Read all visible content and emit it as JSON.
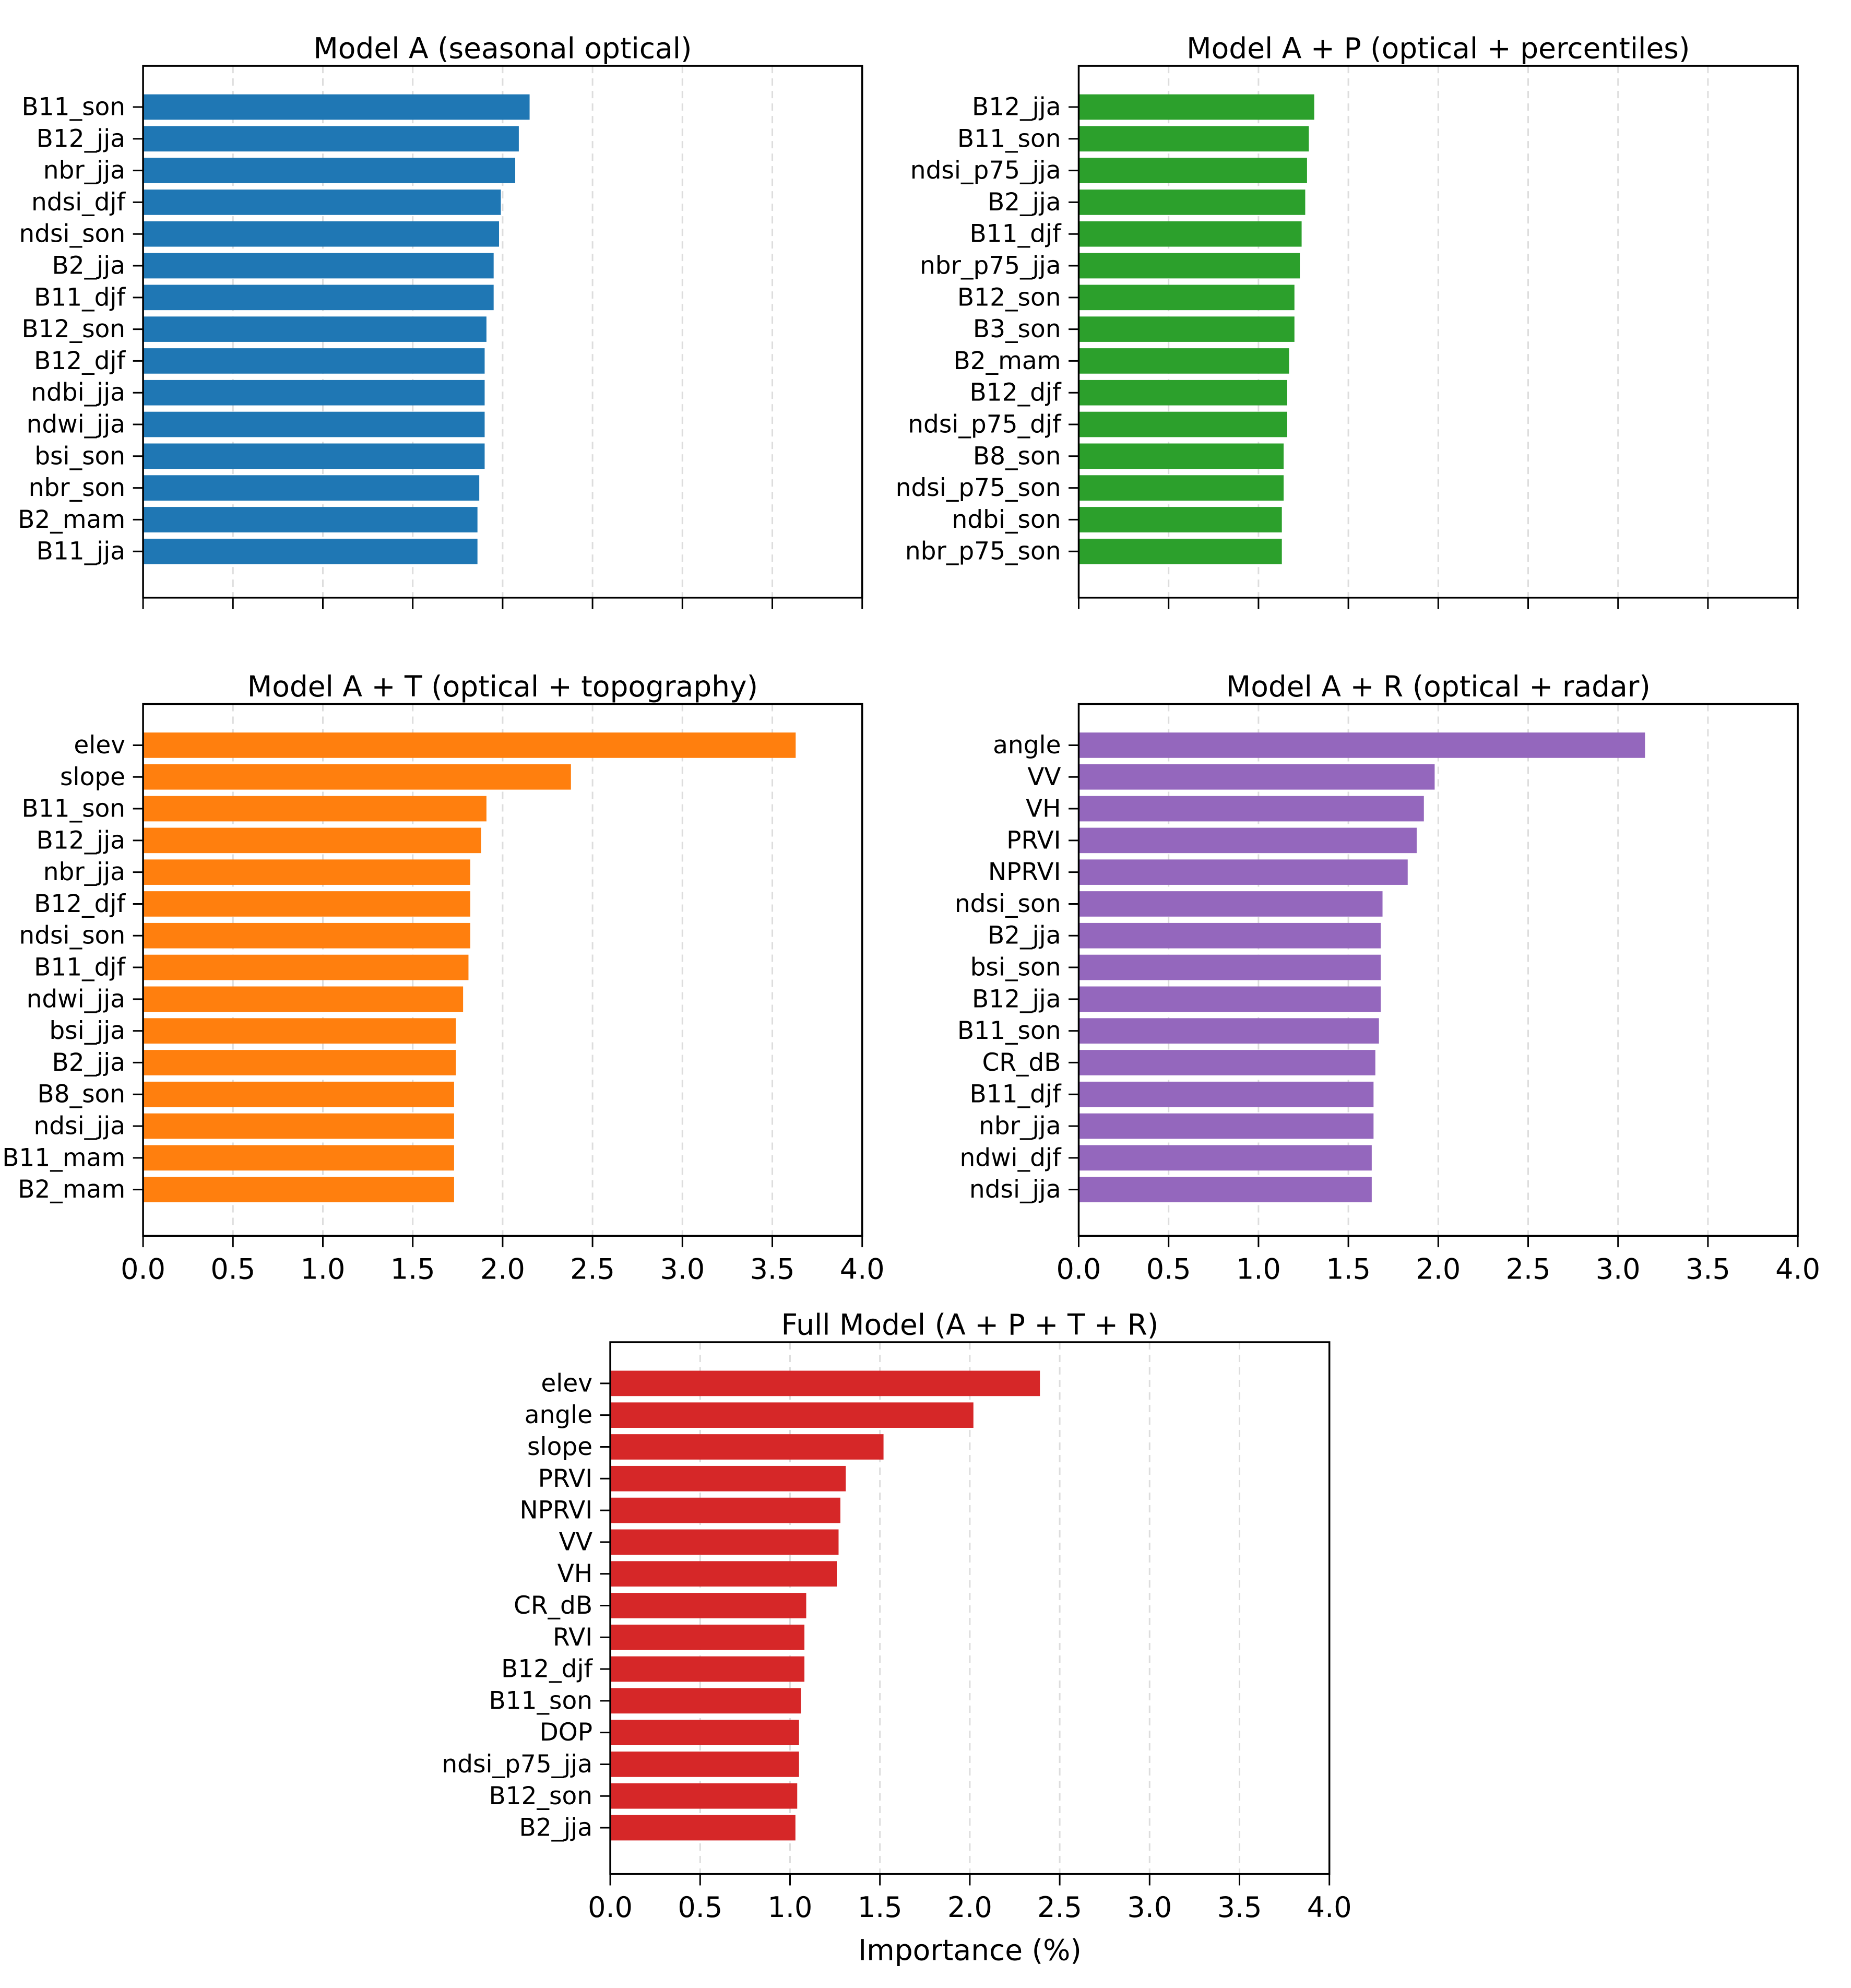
{
  "chart_data": [
    {
      "type": "bar",
      "orientation": "horizontal",
      "title": "Model A (seasonal optical)",
      "color": "#1f77b4",
      "xlim": [
        0,
        4
      ],
      "x_ticks": [
        "0.0",
        "0.5",
        "1.0",
        "1.5",
        "2.0",
        "2.5",
        "3.0",
        "3.5",
        "4.0"
      ],
      "show_tick_labels": false,
      "xlabel": "",
      "grid": "x-dashed",
      "categories": [
        "B11_son",
        "B12_jja",
        "nbr_jja",
        "ndsi_djf",
        "ndsi_son",
        "B2_jja",
        "B11_djf",
        "B12_son",
        "B12_djf",
        "ndbi_jja",
        "ndwi_jja",
        "bsi_son",
        "nbr_son",
        "B2_mam",
        "B11_jja"
      ],
      "values": [
        2.15,
        2.09,
        2.07,
        1.99,
        1.98,
        1.95,
        1.95,
        1.91,
        1.9,
        1.9,
        1.9,
        1.9,
        1.87,
        1.86,
        1.86
      ]
    },
    {
      "type": "bar",
      "orientation": "horizontal",
      "title": "Model A + P (optical + percentiles)",
      "color": "#2ca02c",
      "xlim": [
        0,
        4
      ],
      "x_ticks": [
        "0.0",
        "0.5",
        "1.0",
        "1.5",
        "2.0",
        "2.5",
        "3.0",
        "3.5",
        "4.0"
      ],
      "show_tick_labels": false,
      "xlabel": "",
      "grid": "x-dashed",
      "categories": [
        "B12_jja",
        "B11_son",
        "ndsi_p75_jja",
        "B2_jja",
        "B11_djf",
        "nbr_p75_jja",
        "B12_son",
        "B3_son",
        "B2_mam",
        "B12_djf",
        "ndsi_p75_djf",
        "B8_son",
        "ndsi_p75_son",
        "ndbi_son",
        "nbr_p75_son"
      ],
      "values": [
        1.31,
        1.28,
        1.27,
        1.26,
        1.24,
        1.23,
        1.2,
        1.2,
        1.17,
        1.16,
        1.16,
        1.14,
        1.14,
        1.13,
        1.13
      ]
    },
    {
      "type": "bar",
      "orientation": "horizontal",
      "title": "Model A + T (optical + topography)",
      "color": "#ff7f0e",
      "xlim": [
        0,
        4
      ],
      "x_ticks": [
        "0.0",
        "0.5",
        "1.0",
        "1.5",
        "2.0",
        "2.5",
        "3.0",
        "3.5",
        "4.0"
      ],
      "show_tick_labels": true,
      "xlabel": "",
      "grid": "x-dashed",
      "categories": [
        "elev",
        "slope",
        "B11_son",
        "B12_jja",
        "nbr_jja",
        "B12_djf",
        "ndsi_son",
        "B11_djf",
        "ndwi_jja",
        "bsi_jja",
        "B2_jja",
        "B8_son",
        "ndsi_jja",
        "B11_mam",
        "B2_mam"
      ],
      "values": [
        3.63,
        2.38,
        1.91,
        1.88,
        1.82,
        1.82,
        1.82,
        1.81,
        1.78,
        1.74,
        1.74,
        1.73,
        1.73,
        1.73,
        1.73
      ]
    },
    {
      "type": "bar",
      "orientation": "horizontal",
      "title": "Model A + R (optical + radar)",
      "color": "#9467bd",
      "xlim": [
        0,
        4
      ],
      "x_ticks": [
        "0.0",
        "0.5",
        "1.0",
        "1.5",
        "2.0",
        "2.5",
        "3.0",
        "3.5",
        "4.0"
      ],
      "show_tick_labels": true,
      "xlabel": "",
      "grid": "x-dashed",
      "categories": [
        "angle",
        "VV",
        "VH",
        "PRVI",
        "NPRVI",
        "ndsi_son",
        "B2_jja",
        "bsi_son",
        "B12_jja",
        "B11_son",
        "CR_dB",
        "B11_djf",
        "nbr_jja",
        "ndwi_djf",
        "ndsi_jja"
      ],
      "values": [
        3.15,
        1.98,
        1.92,
        1.88,
        1.83,
        1.69,
        1.68,
        1.68,
        1.68,
        1.67,
        1.65,
        1.64,
        1.64,
        1.63,
        1.63
      ]
    },
    {
      "type": "bar",
      "orientation": "horizontal",
      "title": "Full Model (A + P + T + R)",
      "color": "#d62728",
      "xlim": [
        0,
        4
      ],
      "x_ticks": [
        "0.0",
        "0.5",
        "1.0",
        "1.5",
        "2.0",
        "2.5",
        "3.0",
        "3.5",
        "4.0"
      ],
      "show_tick_labels": true,
      "xlabel": "Importance (%)",
      "grid": "x-dashed",
      "categories": [
        "elev",
        "angle",
        "slope",
        "PRVI",
        "NPRVI",
        "VV",
        "VH",
        "CR_dB",
        "RVI",
        "B12_djf",
        "B11_son",
        "DOP",
        "ndsi_p75_jja",
        "B12_son",
        "B2_jja"
      ],
      "values": [
        2.39,
        2.02,
        1.52,
        1.31,
        1.28,
        1.27,
        1.26,
        1.09,
        1.08,
        1.08,
        1.06,
        1.05,
        1.05,
        1.04,
        1.03
      ]
    }
  ]
}
